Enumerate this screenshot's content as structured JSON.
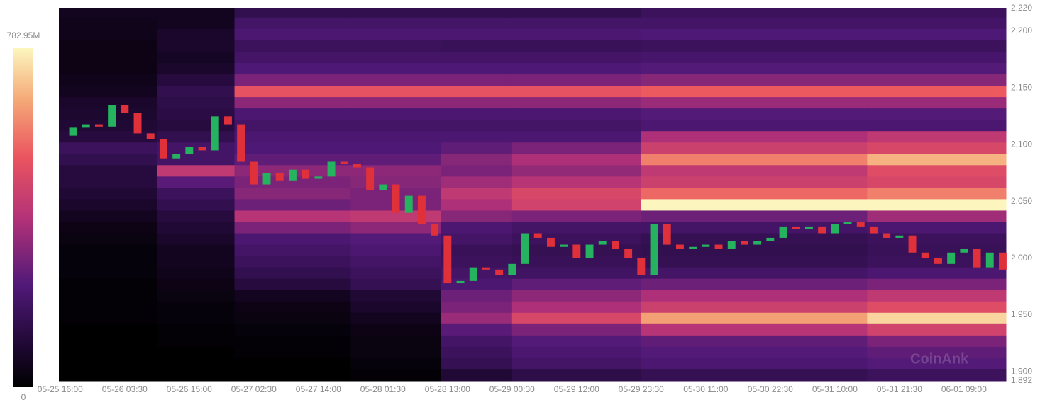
{
  "chart_data": {
    "type": "heatmap",
    "watermark": "CoinAnk",
    "xlim": [
      -0.02,
      14.65
    ],
    "xticks": [
      {
        "value": 0,
        "label": "05-25 16:00"
      },
      {
        "value": 1,
        "label": "05-26 03:30"
      },
      {
        "value": 2,
        "label": "05-26 15:00"
      },
      {
        "value": 3,
        "label": "05-27 02:30"
      },
      {
        "value": 4,
        "label": "05-27 14:00"
      },
      {
        "value": 5,
        "label": "05-28 01:30"
      },
      {
        "value": 6,
        "label": "05-28 13:00"
      },
      {
        "value": 7,
        "label": "05-29 00:30"
      },
      {
        "value": 8,
        "label": "05-29 12:00"
      },
      {
        "value": 9,
        "label": "05-29 23:30"
      },
      {
        "value": 10,
        "label": "05-30 11:00"
      },
      {
        "value": 11,
        "label": "05-30 22:30"
      },
      {
        "value": 12,
        "label": "05-31 10:00"
      },
      {
        "value": 13,
        "label": "05-31 21:30"
      },
      {
        "value": 14,
        "label": "06-01 09:00"
      }
    ],
    "ylim": [
      1892,
      2220
    ],
    "yticks": [
      {
        "value": 1892,
        "label": "1,892"
      },
      {
        "value": 1900,
        "label": "1,900"
      },
      {
        "value": 1950,
        "label": "1,950"
      },
      {
        "value": 2000,
        "label": "2,000"
      },
      {
        "value": 2050,
        "label": "2,050"
      },
      {
        "value": 2100,
        "label": "2,100"
      },
      {
        "value": 2150,
        "label": "2,150"
      },
      {
        "value": 2200,
        "label": "2,200"
      },
      {
        "value": 2220,
        "label": "2,220"
      }
    ],
    "colorbar": {
      "range": [
        0,
        782.95
      ],
      "ticks": [
        {
          "value": 782.95,
          "label": "782.95M"
        },
        0
      ]
    },
    "heatmap": {
      "x_edges": [
        -0.02,
        1.5,
        2.7,
        4.5,
        5.9,
        7.0,
        9.0,
        12.5,
        14.65
      ],
      "levels": [
        2217,
        2207,
        2197,
        2187,
        2177,
        2167,
        2157,
        2147,
        2137,
        2127,
        2117,
        2107,
        2097,
        2087,
        2077,
        2067,
        2057,
        2047,
        2037,
        2027,
        2017,
        2007,
        1997,
        1987,
        1977,
        1967,
        1957,
        1947,
        1937,
        1927,
        1917,
        1907,
        1897
      ],
      "band": 10,
      "z": [
        [
          60,
          60,
          150,
          150,
          150,
          150,
          180,
          180
        ],
        [
          50,
          60,
          200,
          200,
          200,
          200,
          200,
          200
        ],
        [
          50,
          80,
          220,
          220,
          220,
          220,
          230,
          230
        ],
        [
          40,
          80,
          180,
          180,
          170,
          170,
          180,
          180
        ],
        [
          40,
          70,
          200,
          200,
          200,
          200,
          210,
          210
        ],
        [
          40,
          80,
          230,
          230,
          230,
          230,
          240,
          240
        ],
        [
          50,
          120,
          300,
          300,
          300,
          300,
          320,
          320
        ],
        [
          60,
          150,
          520,
          520,
          520,
          520,
          540,
          540
        ],
        [
          80,
          140,
          330,
          330,
          330,
          330,
          350,
          350
        ],
        [
          90,
          130,
          220,
          220,
          220,
          220,
          240,
          240
        ],
        [
          100,
          120,
          200,
          200,
          200,
          200,
          220,
          220
        ],
        [
          120,
          150,
          220,
          220,
          220,
          220,
          380,
          420
        ],
        [
          180,
          200,
          230,
          230,
          260,
          300,
          450,
          480
        ],
        [
          150,
          200,
          260,
          260,
          320,
          380,
          600,
          680
        ],
        [
          120,
          420,
          330,
          330,
          300,
          340,
          420,
          500
        ],
        [
          120,
          250,
          300,
          320,
          360,
          400,
          450,
          480
        ],
        [
          100,
          180,
          320,
          300,
          420,
          480,
          560,
          600
        ],
        [
          80,
          150,
          280,
          300,
          380,
          460,
          783,
          783
        ],
        [
          60,
          120,
          400,
          420,
          320,
          300,
          280,
          360
        ],
        [
          40,
          100,
          300,
          330,
          220,
          200,
          200,
          220
        ],
        [
          30,
          80,
          220,
          240,
          200,
          180,
          160,
          180
        ],
        [
          20,
          60,
          200,
          220,
          170,
          160,
          150,
          170
        ],
        [
          20,
          60,
          180,
          200,
          180,
          170,
          160,
          180
        ],
        [
          20,
          50,
          150,
          180,
          200,
          190,
          200,
          220
        ],
        [
          10,
          40,
          120,
          160,
          220,
          260,
          280,
          300
        ],
        [
          10,
          30,
          60,
          100,
          280,
          330,
          380,
          420
        ],
        [
          10,
          20,
          40,
          80,
          300,
          380,
          450,
          500
        ],
        [
          10,
          20,
          30,
          60,
          350,
          480,
          650,
          730
        ],
        [
          0,
          10,
          20,
          40,
          250,
          300,
          400,
          460
        ],
        [
          0,
          10,
          10,
          30,
          200,
          240,
          260,
          300
        ],
        [
          0,
          0,
          10,
          30,
          180,
          220,
          240,
          260
        ],
        [
          0,
          0,
          0,
          20,
          160,
          200,
          220,
          240
        ],
        [
          0,
          0,
          0,
          10,
          100,
          140,
          160,
          180
        ]
      ]
    },
    "candles": {
      "up_color": "#26b35f",
      "down_color": "#e0313b",
      "x": [
        0,
        0.2,
        0.4,
        0.6,
        0.8,
        1.0,
        1.2,
        1.4,
        1.6,
        1.8,
        2.0,
        2.2,
        2.4,
        2.6,
        2.8,
        3.0,
        3.2,
        3.4,
        3.6,
        3.8,
        4.0,
        4.2,
        4.4,
        4.6,
        4.8,
        5.0,
        5.2,
        5.4,
        5.6,
        5.8,
        6.0,
        6.2,
        6.4,
        6.6,
        6.8,
        7.0,
        7.2,
        7.4,
        7.6,
        7.8,
        8.0,
        8.2,
        8.4,
        8.6,
        8.8,
        9.0,
        9.2,
        9.4,
        9.6,
        9.8,
        10.0,
        10.2,
        10.4,
        10.6,
        10.8,
        11.0,
        11.2,
        11.4,
        11.6,
        11.8,
        12.0,
        12.2,
        12.4,
        12.6,
        12.8,
        13.0,
        13.2,
        13.4,
        13.6,
        13.8,
        14.0,
        14.2,
        14.4,
        14.6
      ],
      "close": [
        2108,
        2115,
        2118,
        2116,
        2135,
        2128,
        2110,
        2105,
        2088,
        2092,
        2098,
        2095,
        2125,
        2118,
        2085,
        2065,
        2075,
        2068,
        2078,
        2070,
        2072,
        2085,
        2083,
        2080,
        2060,
        2065,
        2040,
        2055,
        2030,
        2020,
        1978,
        1980,
        1992,
        1990,
        1985,
        1995,
        2022,
        2018,
        2010,
        2012,
        2000,
        2012,
        2015,
        2008,
        2000,
        1985,
        2030,
        2012,
        2008,
        2010,
        2012,
        2008,
        2015,
        2012,
        2015,
        2018,
        2028,
        2026,
        2028,
        2022,
        2030,
        2032,
        2028,
        2022,
        2018,
        2020,
        2005,
        2000,
        1995,
        2005,
        2008,
        1992,
        2005,
        1990
      ]
    }
  }
}
